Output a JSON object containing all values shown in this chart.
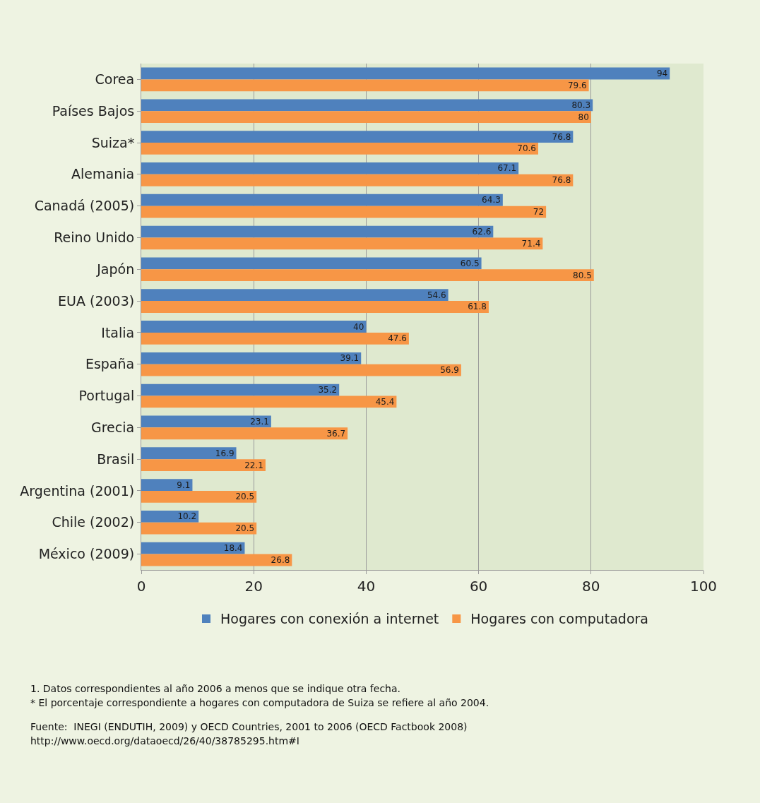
{
  "chart_data": {
    "type": "bar",
    "orientation": "horizontal",
    "categories": [
      "Corea",
      "Países Bajos",
      "Suiza*",
      "Alemania",
      "Canadá (2005)",
      "Reino Unido",
      "Japón",
      "EUA (2003)",
      "Italia",
      "España",
      "Portugal",
      "Grecia",
      "Brasil",
      "Argentina (2001)",
      "Chile (2002)",
      "México (2009)"
    ],
    "series": [
      {
        "name": "Hogares con conexión a internet",
        "color": "#4f81bd",
        "values": [
          94,
          80.3,
          76.8,
          67.1,
          64.3,
          62.6,
          60.5,
          54.6,
          40,
          39.1,
          35.2,
          23.1,
          16.9,
          9.1,
          10.2,
          18.4
        ]
      },
      {
        "name": "Hogares con computadora",
        "color": "#f79646",
        "values": [
          79.6,
          80,
          70.6,
          76.8,
          72,
          71.4,
          80.5,
          61.8,
          47.6,
          56.9,
          45.4,
          36.7,
          22.1,
          20.5,
          20.5,
          26.8
        ]
      }
    ],
    "xlim": [
      0,
      100
    ],
    "xticks": [
      0,
      20,
      40,
      60,
      80,
      100
    ],
    "grid": "x",
    "legend": "bottom",
    "data_labels": true,
    "annotations": [
      "1. Datos correspondientes al año 2006 a menos que se indique otra fecha.",
      "* El porcentaje correspondiente a hogares con computadora de Suiza se refiere al año 2004.",
      "Fuente:  INEGI (ENDUTIH, 2009) y OECD Countries, 2001 to 2006 (OECD Factbook 2008)",
      "http://www.oecd.org/dataoecd/26/40/38785295.htm#I"
    ]
  }
}
